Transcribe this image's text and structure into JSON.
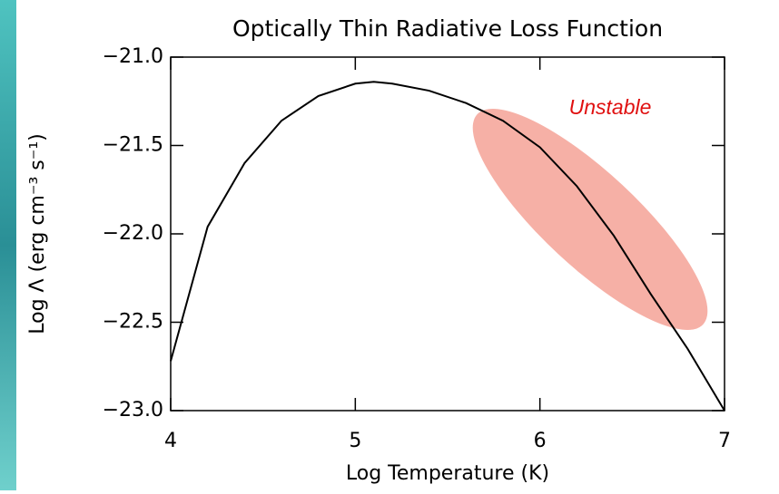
{
  "chart_data": {
    "type": "line",
    "title": "Optically Thin Radiative Loss Function",
    "x_label": "Log Temperature (K)",
    "y_label": "Log Λ (erg cm⁻³ s⁻¹)",
    "annotation": "Unstable",
    "x": [
      4.0,
      4.2,
      4.4,
      4.6,
      4.8,
      5.0,
      5.1,
      5.2,
      5.4,
      5.6,
      5.8,
      6.0,
      6.2,
      6.4,
      6.6,
      6.8,
      7.0
    ],
    "values": [
      -22.72,
      -21.96,
      -21.6,
      -21.36,
      -21.22,
      -21.15,
      -21.14,
      -21.15,
      -21.19,
      -21.26,
      -21.36,
      -21.51,
      -21.73,
      -22.01,
      -22.34,
      -22.65,
      -23.0
    ],
    "color": "#000000",
    "xlim": [
      4,
      7
    ],
    "xticks": [
      4,
      5,
      6,
      7
    ],
    "ylim": [
      -23,
      -21
    ],
    "yticks": [
      {
        "value": -21,
        "label": "−21.0"
      },
      {
        "value": -21.5,
        "label": "−21.5"
      },
      {
        "value": -22,
        "label": "−22.0"
      },
      {
        "value": -22.5,
        "label": "−22.5"
      },
      {
        "value": -23,
        "label": "−23.0"
      }
    ]
  }
}
